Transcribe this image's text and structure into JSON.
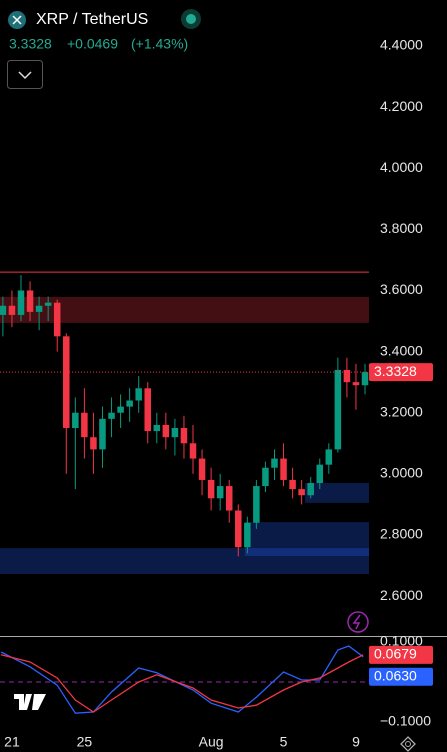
{
  "header": {
    "symbol": "XRP / TetherUS",
    "price": "3.3328",
    "change": "+0.0469",
    "change_pct": "(+1.43%)"
  },
  "chart_data": [
    {
      "type": "candlestick",
      "x": [
        -0.5,
        0,
        0.5,
        1,
        1.5,
        2,
        2.5,
        3,
        3.5,
        4,
        4.5,
        5,
        5.5,
        6,
        6.5,
        7,
        7.5,
        8,
        8.5,
        9,
        9.5,
        10,
        10.5,
        11,
        11.5,
        12,
        12.5,
        13,
        13.5,
        14,
        14.5,
        15,
        15.5,
        16,
        16.5,
        17,
        17.5,
        18,
        18.5,
        19,
        19.5
      ],
      "open": [
        3.52,
        3.55,
        3.52,
        3.6,
        3.53,
        3.55,
        3.56,
        3.45,
        3.15,
        3.2,
        3.12,
        3.08,
        3.18,
        3.2,
        3.22,
        3.24,
        3.28,
        3.14,
        3.16,
        3.12,
        3.15,
        3.1,
        3.05,
        2.98,
        2.92,
        2.96,
        2.88,
        2.76,
        2.84,
        2.96,
        3.02,
        3.05,
        2.98,
        2.95,
        2.93,
        2.97,
        3.03,
        3.08,
        3.34,
        3.3,
        3.29
      ],
      "high": [
        3.58,
        3.6,
        3.65,
        3.63,
        3.58,
        3.58,
        3.57,
        3.46,
        3.25,
        3.28,
        3.2,
        3.22,
        3.25,
        3.26,
        3.28,
        3.32,
        3.3,
        3.2,
        3.2,
        3.18,
        3.19,
        3.16,
        3.08,
        3.02,
        3.0,
        2.98,
        2.9,
        2.86,
        2.98,
        3.04,
        3.08,
        3.1,
        3.02,
        2.98,
        2.99,
        3.05,
        3.1,
        3.38,
        3.38,
        3.36,
        3.36
      ],
      "low": [
        3.45,
        3.48,
        3.5,
        3.5,
        3.47,
        3.5,
        3.4,
        3.0,
        2.95,
        3.05,
        3.0,
        3.02,
        3.12,
        3.15,
        3.17,
        3.2,
        3.1,
        3.1,
        3.08,
        3.06,
        3.05,
        3.0,
        2.93,
        2.88,
        2.88,
        2.84,
        2.73,
        2.74,
        2.82,
        2.94,
        2.98,
        2.96,
        2.92,
        2.9,
        2.92,
        2.95,
        3.0,
        3.07,
        3.25,
        3.21,
        3.26
      ],
      "close": [
        3.55,
        3.52,
        3.6,
        3.53,
        3.55,
        3.56,
        3.45,
        3.15,
        3.2,
        3.12,
        3.08,
        3.18,
        3.2,
        3.22,
        3.24,
        3.28,
        3.14,
        3.16,
        3.12,
        3.15,
        3.1,
        3.05,
        2.98,
        2.92,
        2.96,
        2.88,
        2.76,
        2.84,
        2.96,
        3.02,
        3.05,
        2.98,
        2.95,
        2.93,
        2.97,
        3.03,
        3.08,
        3.34,
        3.3,
        3.29,
        3.3328
      ],
      "up_color": "#089981",
      "down_color": "#f23645",
      "xlim": [
        -0.66,
        19.72
      ],
      "xticks": [
        {
          "value": 0,
          "label": "21"
        },
        {
          "value": 4,
          "label": "25"
        },
        {
          "value": 11,
          "label": "Aug"
        },
        {
          "value": 15,
          "label": "5"
        },
        {
          "value": 19,
          "label": "9"
        }
      ],
      "ylim": [
        2.4694,
        4.5505
      ],
      "yticks": [
        {
          "value": 2.6,
          "label": "2.6000"
        },
        {
          "value": 2.8,
          "label": "2.8000"
        },
        {
          "value": 3,
          "label": "3.0000"
        },
        {
          "value": 3.2,
          "label": "3.2000"
        },
        {
          "value": 3.4,
          "label": "3.4000"
        },
        {
          "value": 3.6,
          "label": "3.6000"
        },
        {
          "value": 3.8,
          "label": "3.8000"
        },
        {
          "value": 4,
          "label": "4.0000"
        },
        {
          "value": 4.2,
          "label": "4.2000"
        },
        {
          "value": 4.4,
          "label": "4.4000"
        }
      ],
      "hlines": [
        {
          "value": 3.66,
          "color": "#f23645"
        }
      ],
      "zones": [
        {
          "low": 3.494,
          "high": 3.579,
          "x_start": -0.66,
          "color": "#f23645"
        },
        {
          "low": 2.905,
          "high": 2.97,
          "x_start": 16.19,
          "color": "#2962ff"
        },
        {
          "low": 2.731,
          "high": 2.842,
          "x_start": 12.87,
          "color": "#2962ff"
        },
        {
          "low": 2.672,
          "high": 2.757,
          "x_start": -0.66,
          "color": "#2962ff"
        }
      ],
      "grid": false
    },
    {
      "type": "line",
      "x": [
        -0.6,
        1,
        2.5,
        3.5,
        4.5,
        5.5,
        7,
        8,
        10,
        11,
        12.5,
        13.5,
        15,
        16,
        17,
        18,
        18.6,
        19.4
      ],
      "series": [
        {
          "color": "#2962ff",
          "values": [
            0.075,
            0.038,
            -0.008,
            -0.078,
            -0.075,
            -0.025,
            0.035,
            0.023,
            -0.02,
            -0.053,
            -0.075,
            -0.038,
            0.025,
            0.005,
            0.005,
            0.08,
            0.09,
            0.063
          ],
          "value_labels": [
            null,
            null,
            null,
            null,
            null,
            null,
            null,
            null,
            null,
            null,
            null,
            null,
            null,
            null,
            null,
            null,
            null,
            "0.0630"
          ]
        },
        {
          "color": "#f23645",
          "values": [
            0.068,
            0.05,
            0.01,
            -0.045,
            -0.075,
            -0.045,
            0,
            0.018,
            -0.015,
            -0.045,
            -0.065,
            -0.058,
            -0.02,
            0,
            0.01,
            0.035,
            0.05,
            0.0679
          ]
        }
      ],
      "xlim": [
        -0.66,
        19.72
      ],
      "ylim": [
        -0.145,
        0.115
      ],
      "yticks": [
        {
          "value": 0.1,
          "label": "0.1000"
        },
        {
          "value": 0,
          "label": "0.0000"
        },
        {
          "value": -0.1,
          "label": "−0.1000"
        }
      ],
      "hlines": [
        {
          "value": 0,
          "color": "#9c27b0"
        }
      ],
      "grid": false
    }
  ]
}
